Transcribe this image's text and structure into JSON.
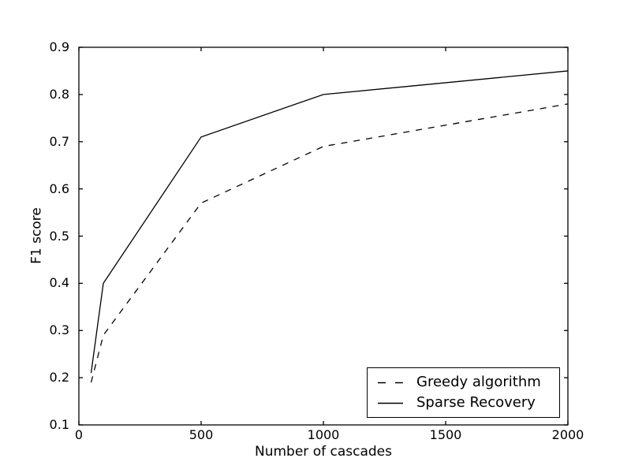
{
  "figure": {
    "background": "#ffffff",
    "axis_color": "#000000",
    "text_color": "#000000"
  },
  "chart_data": {
    "type": "line",
    "title": "",
    "xlabel": "Number of cascades",
    "ylabel": "F1 score",
    "xlim": [
      0,
      2000
    ],
    "ylim": [
      0.1,
      0.9
    ],
    "x_ticks": [
      "0",
      "500",
      "1000",
      "1500",
      "2000"
    ],
    "y_ticks": [
      "0.1",
      "0.2",
      "0.3",
      "0.4",
      "0.5",
      "0.6",
      "0.7",
      "0.8",
      "0.9"
    ],
    "grid": false,
    "legend_position": "lower right",
    "x": [
      50,
      100,
      500,
      1000,
      2000
    ],
    "series": [
      {
        "name": "Greedy algorithm",
        "line_style": "dashed",
        "color": "#000000",
        "values": [
          0.19,
          0.29,
          0.57,
          0.69,
          0.78
        ]
      },
      {
        "name": "Sparse Recovery",
        "line_style": "solid",
        "color": "#000000",
        "values": [
          0.21,
          0.4,
          0.71,
          0.8,
          0.85
        ]
      }
    ]
  }
}
